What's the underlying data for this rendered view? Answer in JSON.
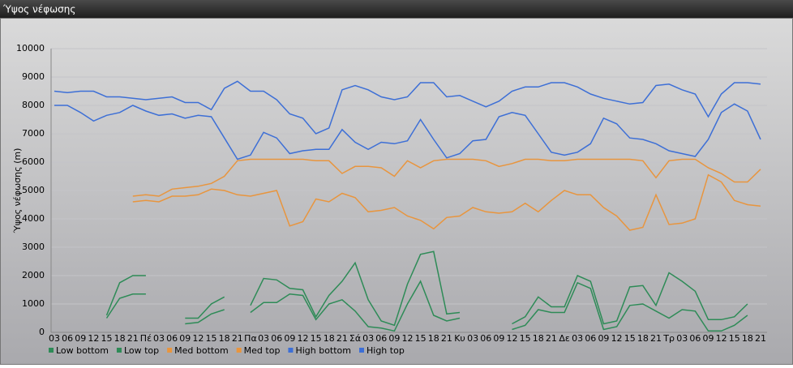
{
  "chart_data": {
    "type": "line",
    "title": "Ύψος νέφωσης",
    "y_label": "Ύψος νέφωσης (m)",
    "categories": [
      "03",
      "06",
      "09",
      "12",
      "15",
      "18",
      "21",
      "Πέ",
      "03",
      "06",
      "09",
      "12",
      "15",
      "18",
      "21",
      "Πα",
      "03",
      "06",
      "09",
      "12",
      "15",
      "18",
      "21",
      "Σά",
      "03",
      "06",
      "09",
      "12",
      "15",
      "18",
      "21",
      "Κυ",
      "03",
      "06",
      "09",
      "12",
      "15",
      "18",
      "21",
      "Δε",
      "03",
      "06",
      "09",
      "12",
      "15",
      "18",
      "21",
      "Τρ",
      "03",
      "06",
      "09",
      "12",
      "15",
      "18",
      "21"
    ],
    "series": [
      {
        "name": "Low bottom",
        "color": "#2e8b57",
        "values": [
          null,
          null,
          null,
          null,
          500,
          1200,
          1350,
          1350,
          null,
          null,
          300,
          350,
          650,
          800,
          null,
          700,
          1050,
          1050,
          1350,
          1300,
          450,
          1000,
          1150,
          750,
          200,
          150,
          50,
          1000,
          1800,
          600,
          400,
          500,
          null,
          null,
          null,
          100,
          250,
          800,
          700,
          700,
          1750,
          1550,
          100,
          200,
          950,
          1000,
          750,
          500,
          800,
          750,
          50,
          50,
          250,
          600,
          null
        ]
      },
      {
        "name": "Low top",
        "color": "#2e8b57",
        "values": [
          null,
          null,
          null,
          null,
          600,
          1750,
          2000,
          2000,
          null,
          null,
          500,
          500,
          1000,
          1250,
          null,
          950,
          1900,
          1850,
          1550,
          1500,
          550,
          1300,
          1800,
          2450,
          1150,
          400,
          250,
          1700,
          2750,
          2850,
          650,
          700,
          null,
          null,
          null,
          300,
          550,
          1250,
          900,
          900,
          2000,
          1800,
          300,
          400,
          1600,
          1650,
          950,
          2100,
          1800,
          1450,
          450,
          450,
          550,
          1000,
          null
        ]
      },
      {
        "name": "Med bottom",
        "color": "#e8953e",
        "values": [
          null,
          null,
          null,
          null,
          null,
          null,
          4600,
          4650,
          4600,
          4800,
          4800,
          4850,
          5050,
          5000,
          4850,
          4800,
          4900,
          5000,
          3750,
          3900,
          4700,
          4600,
          4900,
          4750,
          4250,
          4300,
          4400,
          4100,
          3950,
          3650,
          4050,
          4100,
          4400,
          4250,
          4200,
          4250,
          4550,
          4250,
          4650,
          5000,
          4850,
          4850,
          4400,
          4100,
          3600,
          3700,
          4850,
          3800,
          3850,
          4000,
          5550,
          5300,
          4650,
          4500,
          4450
        ]
      },
      {
        "name": "Med top",
        "color": "#e8953e",
        "values": [
          null,
          null,
          null,
          null,
          null,
          null,
          4800,
          4850,
          4800,
          5050,
          5100,
          5150,
          5250,
          5500,
          6050,
          6100,
          6100,
          6100,
          6100,
          6100,
          6050,
          6050,
          5600,
          5850,
          5850,
          5800,
          5500,
          6050,
          5800,
          6050,
          6100,
          6100,
          6100,
          6050,
          5850,
          5950,
          6100,
          6100,
          6050,
          6050,
          6100,
          6100,
          6100,
          6100,
          6100,
          6050,
          5450,
          6050,
          6100,
          6100,
          5800,
          5600,
          5300,
          5300,
          5750
        ]
      },
      {
        "name": "High bottom",
        "color": "#3d6fd6",
        "values": [
          8000,
          8000,
          7750,
          7450,
          7650,
          7750,
          8000,
          7800,
          7650,
          7700,
          7550,
          7650,
          7600,
          6850,
          6100,
          6250,
          7050,
          6850,
          6300,
          6400,
          6450,
          6450,
          7150,
          6700,
          6450,
          6700,
          6650,
          6750,
          7500,
          6800,
          6150,
          6300,
          6750,
          6800,
          7600,
          7750,
          7650,
          7000,
          6350,
          6250,
          6350,
          6650,
          7550,
          7350,
          6850,
          6800,
          6650,
          6400,
          6300,
          6200,
          6800,
          7750,
          8050,
          7800,
          6800
        ]
      },
      {
        "name": "High top",
        "color": "#3d6fd6",
        "values": [
          8500,
          8450,
          8500,
          8500,
          8300,
          8300,
          8250,
          8200,
          8250,
          8300,
          8100,
          8100,
          7850,
          8600,
          8850,
          8500,
          8500,
          8200,
          7700,
          7550,
          7000,
          7200,
          8550,
          8700,
          8550,
          8300,
          8200,
          8300,
          8800,
          8800,
          8300,
          8350,
          8150,
          7950,
          8150,
          8500,
          8650,
          8650,
          8800,
          8800,
          8650,
          8400,
          8250,
          8150,
          8050,
          8100,
          8700,
          8750,
          8550,
          8400,
          7600,
          8400,
          8800,
          8800,
          8750
        ]
      }
    ],
    "ylim": [
      0,
      10000
    ],
    "yticks": [
      0,
      1000,
      2000,
      3000,
      4000,
      5000,
      6000,
      7000,
      8000,
      9000,
      10000
    ],
    "grid": true
  }
}
